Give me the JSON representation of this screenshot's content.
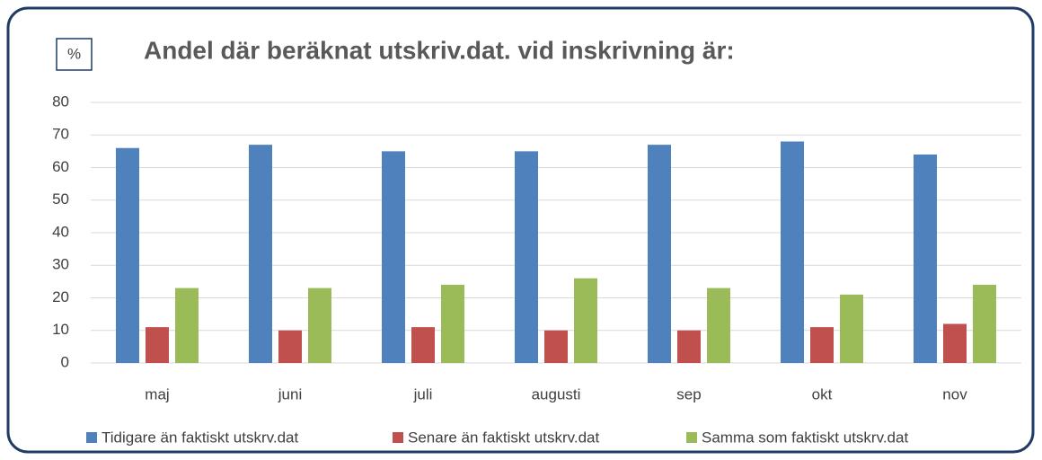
{
  "chart_data": {
    "type": "bar",
    "title": "Andel där beräknat utskriv.dat. vid inskrivning är:",
    "y_label": "%",
    "categories": [
      "maj",
      "juni",
      "juli",
      "augusti",
      "sep",
      "okt",
      "nov"
    ],
    "series": [
      {
        "name": "Tidigare än faktiskt utskrv.dat",
        "color": "#4f81bd",
        "values": [
          66,
          67,
          65,
          65,
          67,
          68,
          64
        ]
      },
      {
        "name": "Senare än faktiskt utskrv.dat",
        "color": "#c0504d",
        "values": [
          11,
          10,
          11,
          10,
          10,
          11,
          12
        ]
      },
      {
        "name": "Samma som faktiskt utskrv.dat",
        "color": "#9bbb59",
        "values": [
          23,
          23,
          24,
          26,
          23,
          21,
          24
        ]
      }
    ],
    "ylim": [
      0,
      80
    ],
    "yticks": [
      0,
      10,
      20,
      30,
      40,
      50,
      60,
      70,
      80
    ],
    "grid": true,
    "legend": "bottom"
  }
}
